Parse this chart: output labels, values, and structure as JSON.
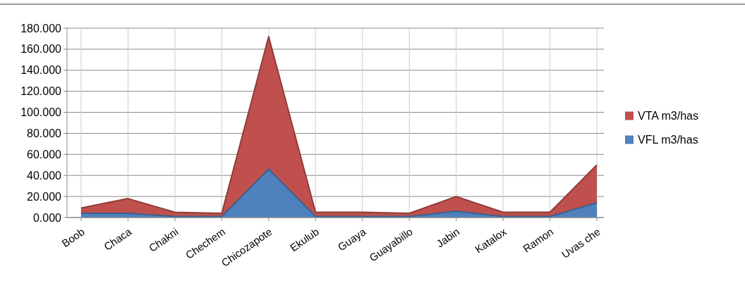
{
  "chart_data": {
    "type": "area",
    "categories": [
      "Boob",
      "Chaca",
      "Chakni",
      "Chechem",
      "Chicozapote",
      "Ekulub",
      "Guaya",
      "Guayabillo",
      "Jabin",
      "Katalox",
      "Ramon",
      "Uvas che"
    ],
    "series": [
      {
        "name": "VTA m3/has",
        "color": "#c0504d",
        "values": [
          9,
          18,
          5,
          4,
          172,
          5,
          5,
          4,
          20,
          5,
          5,
          50
        ]
      },
      {
        "name": "VFL m3/has",
        "color": "#4f81bd",
        "values": [
          4,
          4,
          1,
          1,
          46,
          1,
          1,
          1,
          6,
          1,
          1,
          14
        ]
      }
    ],
    "ylim": [
      0,
      180
    ],
    "yticks": [
      {
        "value": 0,
        "label": "0.000"
      },
      {
        "value": 20,
        "label": "20.000"
      },
      {
        "value": 40,
        "label": "40.000"
      },
      {
        "value": 60,
        "label": "60.000"
      },
      {
        "value": 80,
        "label": "80.000"
      },
      {
        "value": 100,
        "label": "100.000"
      },
      {
        "value": 120,
        "label": "120.000"
      },
      {
        "value": 140,
        "label": "140.000"
      },
      {
        "value": 160,
        "label": "160.000"
      },
      {
        "value": 180,
        "label": "180.000"
      }
    ],
    "grid": true,
    "legend": "right"
  }
}
